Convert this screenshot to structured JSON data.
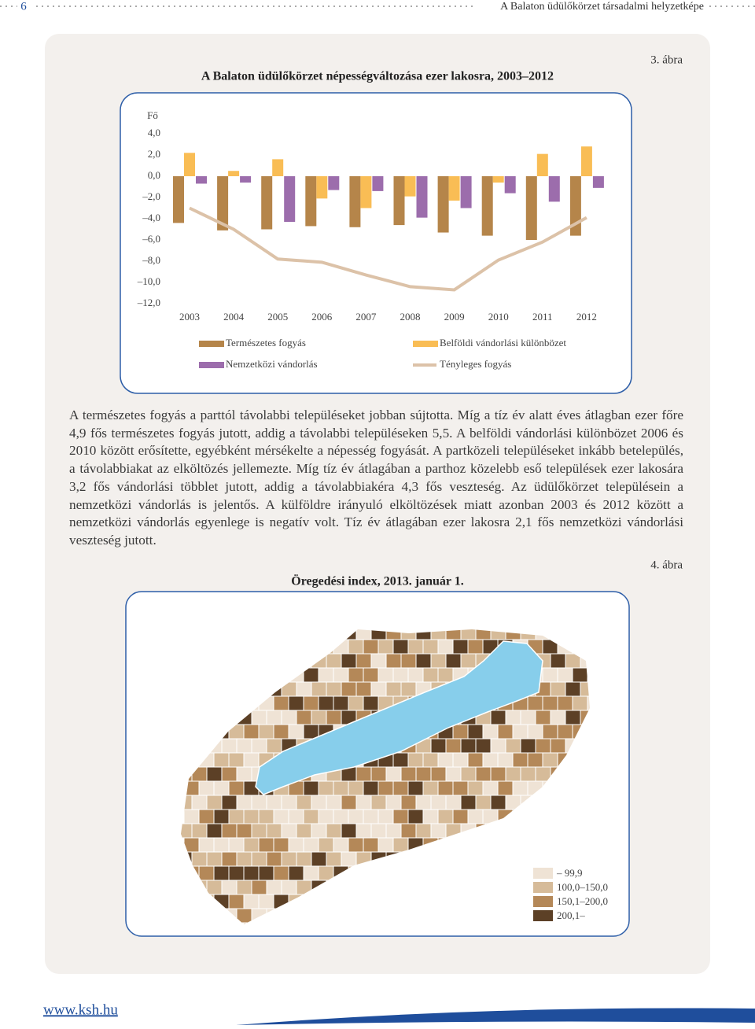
{
  "header": {
    "page_number": "6",
    "running_title": "A Balaton üdülőkörzet társadalmi helyzetképe"
  },
  "chart_data": {
    "type": "bar",
    "figure_label": "3. ábra",
    "title": "A Balaton üdülőkörzet népességváltozása ezer lakosra, 2003–2012",
    "y_label": "Fő",
    "categories": [
      "2003",
      "2004",
      "2005",
      "2006",
      "2007",
      "2008",
      "2009",
      "2010",
      "2011",
      "2012"
    ],
    "series": [
      {
        "name": "Természetes fogyás",
        "color": "#b5854a",
        "values": [
          -4.4,
          -5.1,
          -5.0,
          -4.7,
          -4.8,
          -4.6,
          -5.3,
          -5.6,
          -6.0,
          -5.6
        ]
      },
      {
        "name": "Belföldi vándorlási különbözet",
        "color": "#f9bd55",
        "values": [
          2.2,
          0.5,
          1.6,
          -2.1,
          -3.0,
          -1.9,
          -2.3,
          -0.6,
          2.1,
          2.8
        ]
      },
      {
        "name": "Nemzetközi vándorlás",
        "color": "#9c6dac",
        "values": [
          -0.7,
          -0.6,
          -4.3,
          -1.3,
          -1.4,
          -3.9,
          -3.0,
          -1.6,
          -2.4,
          -1.1
        ]
      },
      {
        "name": "Tényleges fogyás",
        "type": "line",
        "color": "#dcc2a8",
        "values": [
          -3.0,
          -5.0,
          -7.8,
          -8.1,
          -9.3,
          -10.4,
          -10.7,
          -7.9,
          -6.2,
          -3.9
        ]
      }
    ],
    "ylim": [
      -12,
      4
    ],
    "yticks": [
      {
        "value": 4,
        "label": "4,0"
      },
      {
        "value": 2,
        "label": "2,0"
      },
      {
        "value": 0,
        "label": "0,0"
      },
      {
        "value": -2,
        "label": "–2,0"
      },
      {
        "value": -4,
        "label": "–4,0"
      },
      {
        "value": -6,
        "label": "–6,0"
      },
      {
        "value": -8,
        "label": "–8,0"
      },
      {
        "value": -10,
        "label": "–10,0"
      },
      {
        "value": -12,
        "label": "–12,0"
      }
    ],
    "grid": false
  },
  "text": "A természetes fogyás a parttól távolabbi településeket jobban sújtotta. Míg a tíz év alatt éves átlagban ezer főre 4,9 fős természetes fogyás jutott, addig a távolabbi településeken 5,5. A belföldi vándorlási különbözet 2006 és 2010 között erősítette, egyébként mérsékelte a népesség fogyását. A partközeli településeket inkább betelepülés, a távolabbiakat az elköltözés jellemezte. Míg tíz év átlagában a parthoz közelebb eső települések ezer lakosára 3,2 fős vándorlási többlet jutott, addig a távolabbiakéra 4,3 fős veszteség. Az üdülőkörzet településein a nemzetközi vándorlás is jelentős. A külföldre irányuló elköltözések miatt azonban 2003 és 2012 között a nemzetközi vándorlás egyenlege is negatív volt. Tíz év átlagában ezer lakosra 2,1 fős nemzetközi vándorlási veszteség jutott.",
  "figure_4": {
    "label": "4. ábra",
    "title": "Öregedési index, 2013. január 1.",
    "legend": [
      {
        "label": "– 99,9",
        "color": "#efe3d5"
      },
      {
        "label": "100,0–150,0",
        "color": "#d6bb99"
      },
      {
        "label": "150,1–200,0",
        "color": "#b48858"
      },
      {
        "label": "200,1–",
        "color": "#5c4026"
      }
    ]
  },
  "footer": {
    "url": "www.ksh.hu"
  }
}
